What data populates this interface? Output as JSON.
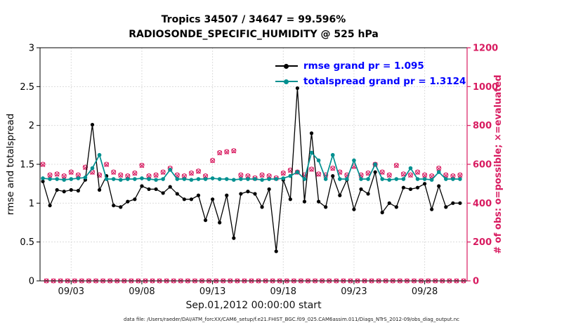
{
  "titles": {
    "line1": "Tropics 34507 / 34647 = 99.596%",
    "line2": "RADIOSONDE_SPECIFIC_HUMIDITY @ 525 hPa"
  },
  "caption": "data file: /Users/raeder/DAI/ATM_forcXX/CAM6_setup/f.e21.FHIST_BGC.f09_025.CAM6assim.011/Diags_NTrS_2012-09/obs_diag_output.nc",
  "legend": {
    "rmse_label": "rmse grand pr = 1.095",
    "totalspread_label": "totalspread grand pr = 1.3124",
    "text_color": "#0000ff"
  },
  "colors": {
    "rmse": "#000000",
    "totalspread": "#009090",
    "obs": "#d81b60",
    "grid": "#dcdcdc"
  },
  "chart_data": {
    "type": "line",
    "title": "Tropics 34507 / 34647 = 99.596%",
    "subtitle": "RADIOSONDE_SPECIFIC_HUMIDITY @ 525 hPa",
    "xlabel": "Sep.01,2012 00:00:00 start",
    "ylabel_left": "rmse and totalspread",
    "ylabel_right": "# of obs: o=possible; ×=evaluated",
    "xlim": [
      0.8,
      31.0
    ],
    "ylim_left": [
      0,
      3
    ],
    "ylim_right": [
      0,
      1200
    ],
    "grid": true,
    "legend_position": "top-center-inside",
    "xticks": {
      "days": [
        3,
        8,
        13,
        18,
        23,
        28
      ],
      "labels": [
        "09/03",
        "09/08",
        "09/13",
        "09/18",
        "09/23",
        "09/28"
      ]
    },
    "yticks_left": {
      "values": [
        0,
        0.5,
        1,
        1.5,
        2,
        2.5,
        3
      ],
      "labels": [
        "0",
        "0.5",
        "1",
        "1.5",
        "2",
        "2.5",
        "3"
      ]
    },
    "yticks_right": {
      "values": [
        0,
        200,
        400,
        600,
        800,
        1000,
        1200
      ],
      "labels": [
        "0",
        "200",
        "400",
        "600",
        "800",
        "1000",
        "1200"
      ]
    },
    "x_start_day": 1.0,
    "x_step_days": 0.5,
    "rmse": {
      "name": "rmse",
      "grand_mean": 1.095,
      "values": [
        1.28,
        0.97,
        1.17,
        1.15,
        1.17,
        1.16,
        1.3,
        2.01,
        1.17,
        1.35,
        0.97,
        0.95,
        1.02,
        1.05,
        1.22,
        1.18,
        1.18,
        1.13,
        1.21,
        1.12,
        1.05,
        1.05,
        1.1,
        0.78,
        1.05,
        0.75,
        1.1,
        0.55,
        1.12,
        1.15,
        1.12,
        0.95,
        1.18,
        0.38,
        1.3,
        1.05,
        2.48,
        1.02,
        1.9,
        1.02,
        0.95,
        1.35,
        1.1,
        1.3,
        0.92,
        1.18,
        1.12,
        1.4,
        0.88,
        1.0,
        0.95,
        1.2,
        1.18,
        1.2,
        1.25,
        0.92,
        1.22,
        0.95,
        1.0,
        1.0
      ]
    },
    "totalspread": {
      "name": "totalspread",
      "grand_mean": 1.3124,
      "values": [
        1.32,
        1.31,
        1.31,
        1.3,
        1.31,
        1.32,
        1.33,
        1.45,
        1.62,
        1.31,
        1.31,
        1.3,
        1.31,
        1.31,
        1.32,
        1.31,
        1.3,
        1.31,
        1.43,
        1.31,
        1.31,
        1.3,
        1.31,
        1.31,
        1.32,
        1.31,
        1.31,
        1.3,
        1.31,
        1.31,
        1.31,
        1.3,
        1.31,
        1.31,
        1.32,
        1.35,
        1.4,
        1.31,
        1.65,
        1.55,
        1.31,
        1.62,
        1.31,
        1.31,
        1.55,
        1.31,
        1.31,
        1.5,
        1.31,
        1.3,
        1.31,
        1.31,
        1.45,
        1.31,
        1.31,
        1.3,
        1.4,
        1.31,
        1.31,
        1.31
      ]
    },
    "obs": {
      "axis": "right",
      "possible": [
        600,
        545,
        550,
        540,
        560,
        545,
        585,
        560,
        545,
        600,
        560,
        545,
        540,
        555,
        595,
        540,
        545,
        560,
        580,
        545,
        540,
        555,
        565,
        540,
        620,
        660,
        665,
        670,
        545,
        540,
        530,
        545,
        540,
        530,
        555,
        570,
        560,
        545,
        575,
        550,
        545,
        580,
        560,
        545,
        590,
        545,
        555,
        600,
        560,
        545,
        595,
        550,
        545,
        560,
        545,
        540,
        580,
        545,
        540,
        545
      ],
      "evaluated": [
        598,
        543,
        548,
        538,
        558,
        543,
        583,
        558,
        543,
        598,
        558,
        543,
        538,
        553,
        593,
        538,
        543,
        558,
        578,
        543,
        538,
        553,
        563,
        538,
        618,
        658,
        663,
        668,
        543,
        538,
        528,
        543,
        538,
        528,
        553,
        568,
        558,
        543,
        573,
        548,
        543,
        578,
        558,
        543,
        588,
        543,
        553,
        598,
        558,
        543,
        593,
        548,
        543,
        558,
        543,
        538,
        578,
        543,
        538,
        543
      ],
      "offtime_count": 0,
      "offtime_x_offset_days": 0.25
    }
  }
}
